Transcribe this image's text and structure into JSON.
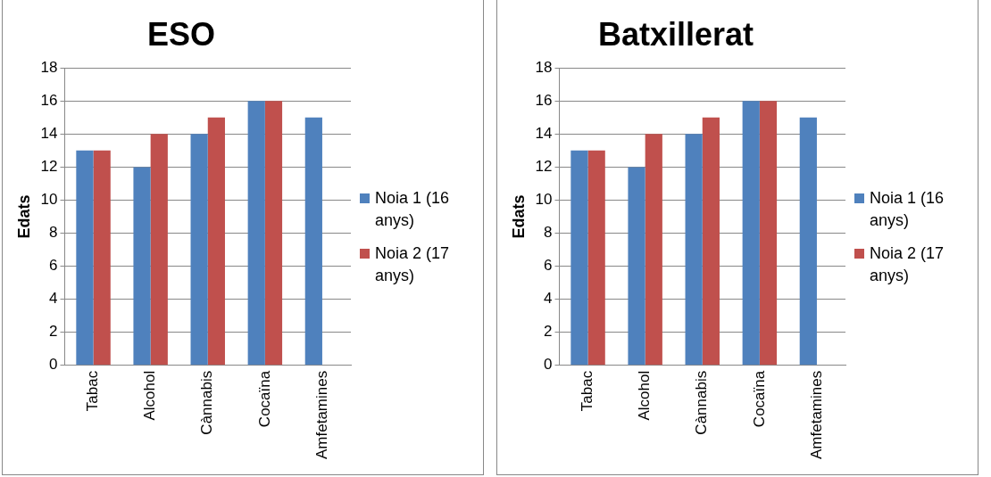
{
  "chart_data": [
    {
      "type": "bar",
      "title": "ESO",
      "ylabel": "Edats",
      "categories": [
        "Tabac",
        "Alcohol",
        "Cànnabis",
        "Cocaïna",
        "Amfetamines"
      ],
      "series": [
        {
          "name": "Noia 1 (16 anys)",
          "color": "#4f81bd",
          "values": [
            13,
            12,
            14,
            16,
            15
          ]
        },
        {
          "name": "Noia 2 (17 anys)",
          "color": "#c0504d",
          "values": [
            13,
            14,
            15,
            16,
            null
          ]
        }
      ],
      "ylim": [
        0,
        18
      ],
      "yticks": [
        0,
        2,
        4,
        6,
        8,
        10,
        12,
        14,
        16,
        18
      ],
      "grid": "y",
      "legend": "right"
    },
    {
      "type": "bar",
      "title": "Batxillerat",
      "ylabel": "Edats",
      "categories": [
        "Tabac",
        "Alcohol",
        "Cànnabis",
        "Cocaïna",
        "Amfetamines"
      ],
      "series": [
        {
          "name": "Noia 1 (16 anys)",
          "color": "#4f81bd",
          "values": [
            13,
            12,
            14,
            16,
            15
          ]
        },
        {
          "name": "Noia 2 (17 anys)",
          "color": "#c0504d",
          "values": [
            13,
            14,
            15,
            16,
            null
          ]
        }
      ],
      "ylim": [
        0,
        18
      ],
      "yticks": [
        0,
        2,
        4,
        6,
        8,
        10,
        12,
        14,
        16,
        18
      ],
      "grid": "y",
      "legend": "right"
    }
  ]
}
